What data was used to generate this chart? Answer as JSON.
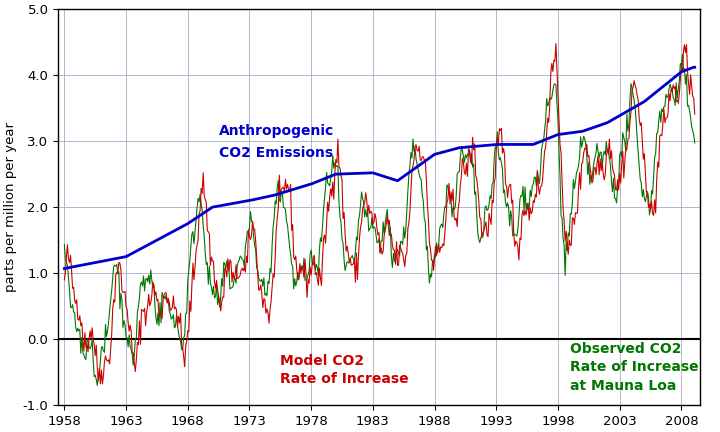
{
  "ylabel": "parts per million per year",
  "xlim": [
    1957.5,
    2009.5
  ],
  "ylim": [
    -1.0,
    5.0
  ],
  "yticks": [
    -1.0,
    0.0,
    1.0,
    2.0,
    3.0,
    4.0,
    5.0
  ],
  "xticks": [
    1958,
    1963,
    1968,
    1973,
    1978,
    1983,
    1988,
    1993,
    1998,
    2003,
    2008
  ],
  "blue_label_line1": "Anthropogenic",
  "blue_label_line2": "CO2 Emissions",
  "red_label_line1": "Model CO2",
  "red_label_line2": "Rate of Increase",
  "green_label_line1": "Observed CO2",
  "green_label_line2": "Rate of Increase",
  "green_label_line3": "at Mauna Loa",
  "blue_color": "#0000CC",
  "red_color": "#CC0000",
  "green_color": "#007700",
  "background_color": "#FFFFFF",
  "grid_color": "#AAAACC",
  "zero_line_color": "#000000",
  "tick_fontsize": 9.5,
  "label_fontsize": 9.5,
  "annotation_fontsize": 10
}
